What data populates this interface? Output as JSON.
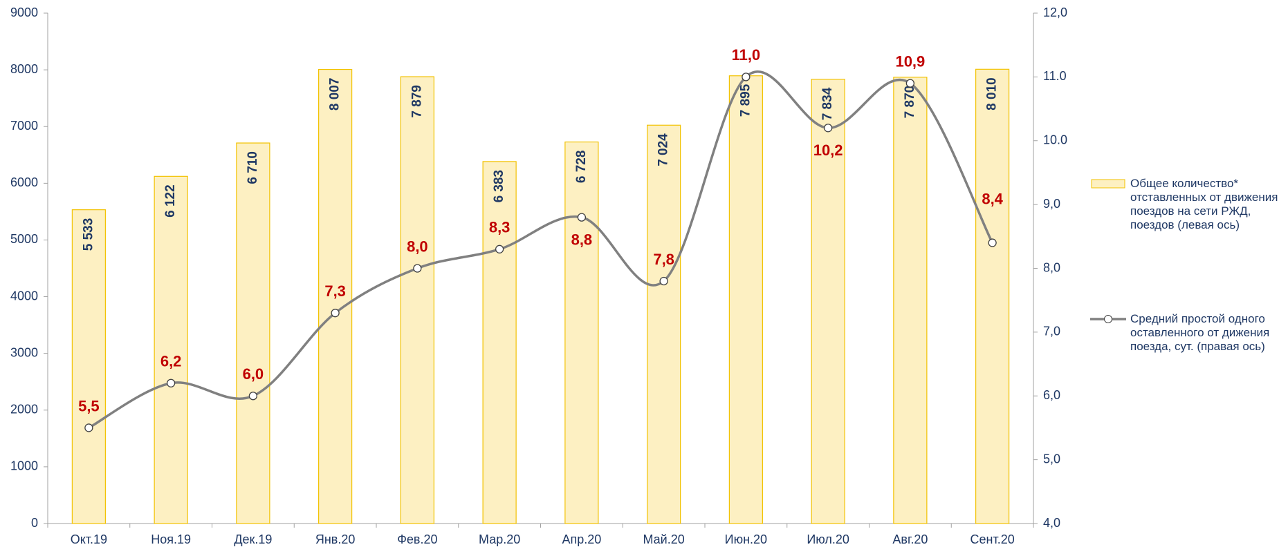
{
  "chart_data": {
    "type": "bar_line",
    "categories": [
      "Окт.19",
      "Ноя.19",
      "Дек.19",
      "Янв.20",
      "Фев.20",
      "Мар.20",
      "Апр.20",
      "Май.20",
      "Июн.20",
      "Июл.20",
      "Авг.20",
      "Сент.20"
    ],
    "series": [
      {
        "name": "Общее количество* отставленных от движения поездов на сети РЖД, поездов (левая ось)",
        "type": "bar",
        "color": "#fdf0c2",
        "edge_color": "#f2c200",
        "values": [
          5533,
          6122,
          6710,
          8007,
          7879,
          6383,
          6728,
          7024,
          7895,
          7834,
          7870,
          8010
        ],
        "value_labels": [
          "5 533",
          "6 122",
          "6 710",
          "8 007",
          "7 879",
          "6 383",
          "6 728",
          "7 024",
          "7 895",
          "7 834",
          "7 870",
          "8 010"
        ]
      },
      {
        "name": "Средний простой одного оставленного от дижения поезда, сут. (правая ось)",
        "type": "line",
        "axis": "y2",
        "color": "#808080",
        "values": [
          5.5,
          6.2,
          6.0,
          7.3,
          8.0,
          8.3,
          8.8,
          7.8,
          11.0,
          10.2,
          10.9,
          8.4
        ],
        "value_labels": [
          "5,5",
          "6,2",
          "6,0",
          "7,3",
          "8,0",
          "8,3",
          "8,8",
          "7,8",
          "11,0",
          "10,2",
          "10,9",
          "8,4"
        ]
      }
    ],
    "ylim": [
      0,
      9000
    ],
    "yticks": [
      0,
      1000,
      2000,
      3000,
      4000,
      5000,
      6000,
      7000,
      8000,
      9000
    ],
    "y2lim": [
      4,
      12
    ],
    "y2ticks": [
      {
        "value": 4,
        "label": "4,0"
      },
      {
        "value": 5,
        "label": "5,0"
      },
      {
        "value": 6,
        "label": "6,0"
      },
      {
        "value": 7,
        "label": "7,0"
      },
      {
        "value": 8,
        "label": "8,0"
      },
      {
        "value": 9,
        "label": "9,0"
      },
      {
        "value": 10,
        "label": "10.0"
      },
      {
        "value": 11,
        "label": "11.0"
      },
      {
        "value": 12,
        "label": "12,0"
      }
    ],
    "legend": "right"
  }
}
